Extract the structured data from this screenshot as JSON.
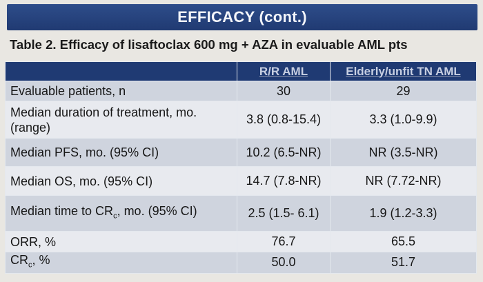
{
  "banner": {
    "title": "EFFICACY (cont.)"
  },
  "caption": "Table 2. Efficacy of lisaftoclax 600 mg + AZA in evaluable AML pts",
  "table": {
    "headers": [
      "",
      "R/R AML",
      "Elderly/unfit TN AML"
    ],
    "rows": [
      {
        "label": "Evaluable patients, n",
        "rr": "30",
        "tn": "29"
      },
      {
        "label": "Median duration of treatment, mo. (range)",
        "rr": "3.8 (0.8-15.4)",
        "tn": "3.3 (1.0-9.9)"
      },
      {
        "label": "Median PFS, mo. (95% CI)",
        "rr": "10.2 (6.5-NR)",
        "tn": "NR (3.5-NR)"
      },
      {
        "label": "Median OS, mo. (95% CI)",
        "rr": "14.7 (7.8-NR)",
        "tn": "NR (7.72-NR)"
      },
      {
        "label_pre": "Median time to CR",
        "label_sub": "c",
        "label_post": ", mo. (95% CI)",
        "rr": "2.5 (1.5- 6.1)",
        "tn": "1.9 (1.2-3.3)"
      },
      {
        "label": "ORR, %",
        "rr": "76.7",
        "tn": "65.5"
      },
      {
        "label_pre": "CR",
        "label_sub": "c",
        "label_post": ", %",
        "rr": "50.0",
        "tn": "51.7"
      }
    ]
  },
  "colors": {
    "banner_bg": "#203a72",
    "header_bg": "#1f3a73",
    "row_odd": "#cfd4de",
    "row_even": "#e8eaef"
  }
}
